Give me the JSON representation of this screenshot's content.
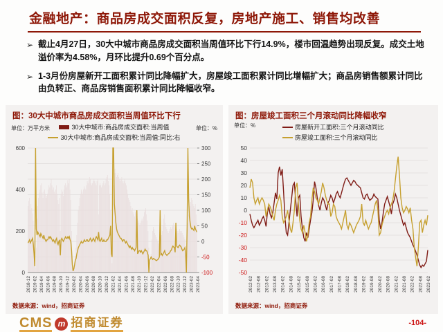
{
  "page": {
    "title": "金融地产：商品房成交面积反复，房地产施工、销售均改善",
    "bullets": [
      {
        "marker": "➢",
        "text": "截止4月27日，30大中城市商品房成交面积当周值环比下行14.9%，楼市回温趋势出现反复。成交土地溢价率为4.58%，月环比提升0.69个百分点。"
      },
      {
        "marker": "➢",
        "text": "1-3月份房屋新开工面积累计同比降幅扩大，房屋竣工面积累计同比增幅扩大；商品房销售额累计同比由负转正、商品房销售面积累计同比降幅收窄。"
      }
    ],
    "page_number": "-104-",
    "logo": {
      "cms": "CMS",
      "badge_glyph": "m",
      "brand": "招商证券"
    }
  },
  "colors": {
    "accent_red": "#8e1808",
    "series_dark_red": "#7f1b15",
    "series_gold": "#c6a02f",
    "bar_fill": "#e9dede",
    "negative_tick": "#cc1111",
    "tick_text": "#3a3a3a",
    "grid": "#e4e1e0",
    "zero_line": "#c2bfbd",
    "axis_line": "#8a8a8a"
  },
  "left_panel": {
    "caption": "图：30大中城市商品房成交面积当周值环比下行",
    "unit_left": "单位：万平方米",
    "unit_right": "单位：%",
    "source": "数据来源：wind，招商证券"
  },
  "right_panel": {
    "caption": "图：房屋竣工面积三个月滚动同比降幅收窄",
    "unit": "单位：%",
    "source": "数据来源：wind，招商证券"
  },
  "chart_data": [
    {
      "type": "bar",
      "title": "30大中城市商品房成交面积当周值环比下行",
      "x_labels": [
        "2018-12",
        "2019-02",
        "2019-04",
        "2019-06",
        "2019-08",
        "2019-10",
        "2019-12",
        "2020-02",
        "2020-04",
        "2020-06",
        "2020-08",
        "2020-10",
        "2020-12",
        "2021-02",
        "2021-04",
        "2021-06",
        "2021-08",
        "2021-10",
        "2021-12",
        "2022-02",
        "2022-04",
        "2022-06",
        "2022-08",
        "2022-10",
        "2022-12",
        "2023-02",
        "2023-04"
      ],
      "ylim_left": [
        0,
        600
      ],
      "ylim_right": [
        -100,
        300
      ],
      "y_ticks_left": [
        0,
        200,
        400,
        600
      ],
      "y_ticks_right": [
        300,
        250,
        200,
        150,
        100,
        50,
        0,
        -50,
        -100
      ],
      "legend_position": "top",
      "grid": true,
      "series": [
        {
          "name": "30大中城市:商品房成交面积:当周值",
          "type": "bar",
          "axis": "left",
          "values": [
            320,
            345,
            360,
            300,
            330,
            310,
            285,
            250,
            150,
            30,
            25,
            120,
            260,
            320,
            360,
            385,
            400,
            420,
            430,
            385,
            360,
            390,
            400,
            380,
            360,
            370,
            380,
            400,
            420,
            410,
            430,
            450,
            420,
            400,
            410,
            390,
            380,
            400,
            420,
            380,
            350,
            330,
            360,
            200,
            380,
            400,
            390,
            370,
            400,
            420,
            430,
            410,
            420,
            445,
            430,
            450,
            400,
            350,
            200,
            60,
            20,
            15,
            30,
            80,
            120,
            180,
            240,
            300,
            320,
            360,
            380,
            400,
            390,
            380,
            400,
            415,
            405,
            400,
            420,
            440,
            430,
            445,
            460,
            450,
            430,
            420,
            430,
            440,
            450,
            440,
            430,
            420,
            440,
            450,
            280,
            420,
            430,
            420,
            410,
            420,
            430,
            440,
            420,
            430,
            450,
            460,
            470,
            440,
            420,
            380,
            300,
            80,
            45,
            200,
            420,
            480,
            500,
            480,
            460,
            470,
            480,
            460,
            450,
            440,
            450,
            460,
            440,
            430,
            440,
            450,
            430,
            420,
            400,
            380,
            360,
            350,
            340,
            320,
            300,
            310,
            290,
            280,
            270,
            290,
            300,
            180,
            260,
            250,
            240,
            230,
            240,
            250,
            260,
            250,
            270,
            290,
            300,
            310,
            280,
            250,
            200,
            120,
            30,
            25,
            90,
            160,
            200,
            220,
            210,
            190,
            180,
            170,
            160,
            150,
            140,
            150,
            160,
            170,
            180,
            200,
            230,
            260,
            280,
            240,
            220,
            210,
            200,
            190,
            200,
            210,
            220,
            210,
            220,
            230,
            240,
            230,
            120,
            200,
            210,
            200,
            190,
            200,
            210,
            200,
            190,
            200,
            190,
            180,
            170,
            160,
            120,
            60,
            180,
            240,
            280,
            300,
            320,
            340,
            360,
            350,
            330,
            320,
            310,
            330,
            280,
            240
          ]
        },
        {
          "name": "30大中城市:商品房成交面积:当周值:同比:右",
          "type": "line",
          "axis": "right",
          "values": [
            -5,
            0,
            5,
            -5,
            0,
            5,
            10,
            -10,
            -40,
            -80,
            300,
            40,
            20,
            30,
            25,
            20,
            15,
            25,
            20,
            15,
            10,
            20,
            10,
            5,
            0,
            5,
            5,
            10,
            15,
            10,
            15,
            10,
            5,
            0,
            5,
            0,
            -5,
            5,
            10,
            -5,
            -10,
            0,
            5,
            -45,
            5,
            10,
            5,
            0,
            5,
            10,
            15,
            10,
            10,
            15,
            10,
            15,
            5,
            0,
            -30,
            -75,
            -95,
            -88,
            -75,
            -60,
            -55,
            -40,
            -30,
            -20,
            -15,
            -10,
            -5,
            0,
            -5,
            -5,
            0,
            5,
            0,
            0,
            5,
            5,
            0,
            0,
            5,
            10,
            5,
            0,
            5,
            10,
            5,
            0,
            10,
            15,
            10,
            5,
            30,
            5,
            0,
            5,
            10,
            0,
            0,
            5,
            0,
            0,
            0,
            5,
            5,
            10,
            15,
            20,
            50,
            -40,
            -50,
            300,
            300,
            120,
            90,
            60,
            40,
            30,
            25,
            20,
            15,
            10,
            10,
            5,
            0,
            5,
            5,
            0,
            -5,
            0,
            -5,
            -10,
            -15,
            -20,
            -15,
            -20,
            -25,
            -20,
            -25,
            -25,
            -30,
            -25,
            -20,
            100,
            -40,
            -35,
            -30,
            -30,
            -35,
            -30,
            -35,
            -40,
            -35,
            -30,
            -25,
            -30,
            -30,
            -35,
            -45,
            -100,
            -60,
            -55,
            -50,
            -55,
            -58,
            -55,
            -56,
            -58,
            -60,
            -62,
            -60,
            -58,
            -55,
            -50,
            100,
            -45,
            -40,
            -45,
            -40,
            -35,
            -30,
            -40,
            -42,
            -45,
            -42,
            -40,
            -38,
            -35,
            -30,
            -28,
            -20,
            -15,
            -18,
            -20,
            -35,
            60,
            -15,
            -18,
            -20,
            -15,
            -12,
            -15,
            -18,
            -25,
            -30,
            -28,
            -25,
            -20,
            -40,
            -100,
            50,
            300,
            140,
            80,
            60,
            45,
            40,
            42,
            38,
            35,
            50,
            40,
            35,
            30
          ]
        }
      ]
    },
    {
      "type": "line",
      "title": "房屋竣工面积三个月滚动同比降幅收窄",
      "x_labels": [
        "2012-02",
        "2012-08",
        "2013-02",
        "2013-08",
        "2014-02",
        "2014-08",
        "2015-02",
        "2015-08",
        "2016-02",
        "2016-08",
        "2017-02",
        "2017-08",
        "2018-02",
        "2018-08",
        "2019-02",
        "2019-08",
        "2020-02",
        "2020-08",
        "2021-02",
        "2021-08",
        "2022-02",
        "2022-08",
        "2023-02"
      ],
      "ylim": [
        -50,
        50
      ],
      "y_ticks": [
        50,
        40,
        30,
        20,
        10,
        0,
        -10,
        -20,
        -30,
        -40,
        -50
      ],
      "legend_position": "top",
      "grid": true,
      "series": [
        {
          "name": "房屋新开工面积:三个月滚动同比",
          "values": [
            -3,
            -8,
            -12,
            -14,
            -12,
            -10,
            -8,
            -12,
            -10,
            -7,
            -5,
            -8,
            -13,
            -2,
            3,
            -3,
            -6,
            -2,
            6,
            14,
            9,
            30,
            35,
            28,
            33,
            15,
            -5,
            -18,
            -20,
            -10,
            0,
            10,
            20,
            22,
            8,
            -5,
            10,
            12,
            -5,
            -15,
            -22,
            -25,
            -18,
            -22,
            -15,
            -8,
            -2,
            8,
            23,
            18,
            10,
            4,
            0,
            6,
            10,
            8,
            4,
            0,
            6,
            8,
            12,
            10,
            6,
            9,
            13,
            15,
            12,
            10,
            14,
            18,
            22,
            25,
            26,
            24,
            22,
            20,
            22,
            24,
            23,
            21,
            20,
            19,
            18,
            14,
            10,
            9,
            12,
            13,
            10,
            8,
            9,
            10,
            13,
            11,
            10,
            9,
            -8,
            -15,
            -10,
            -2,
            5,
            8,
            11,
            7,
            3,
            -3,
            5,
            8,
            13,
            10,
            5,
            0,
            -4,
            -8,
            -12,
            -10,
            -14,
            -18,
            -20,
            -22,
            -25,
            -28,
            -30,
            -33,
            -36,
            -40,
            -44,
            -46,
            -44,
            -45,
            -43,
            -41,
            -32
          ]
        },
        {
          "name": "房屋竣工面积:三个月滚动同比",
          "values": [
            18,
            25,
            22,
            10,
            5,
            8,
            10,
            5,
            8,
            10,
            8,
            5,
            -5,
            0,
            5,
            3,
            0,
            -5,
            -8,
            0,
            5,
            8,
            12,
            8,
            -5,
            -10,
            -8,
            -5,
            0,
            -8,
            -15,
            -18,
            -10,
            0,
            18,
            22,
            5,
            -8,
            -15,
            -18,
            -12,
            -18,
            -25,
            -20,
            -10,
            -5,
            8,
            18,
            15,
            10,
            8,
            5,
            10,
            15,
            22,
            18,
            12,
            8,
            5,
            5,
            -5,
            -2,
            5,
            3,
            -5,
            -8,
            -10,
            -12,
            -15,
            -10,
            -5,
            0,
            -12,
            -15,
            -10,
            -12,
            -15,
            -18,
            -15,
            -12,
            -10,
            -8,
            -5,
            5,
            -10,
            -12,
            -8,
            -12,
            -15,
            -12,
            -10,
            -5,
            0,
            5,
            8,
            0,
            -20,
            -18,
            -12,
            -8,
            -5,
            -2,
            0,
            -3,
            2,
            5,
            8,
            15,
            25,
            35,
            43,
            28,
            10,
            2,
            -2,
            0,
            3,
            1,
            -2,
            2,
            -8,
            -15,
            -30,
            -38,
            -45,
            -30,
            -10,
            -8,
            -18,
            -12,
            -8,
            -12,
            -4
          ]
        }
      ]
    }
  ]
}
